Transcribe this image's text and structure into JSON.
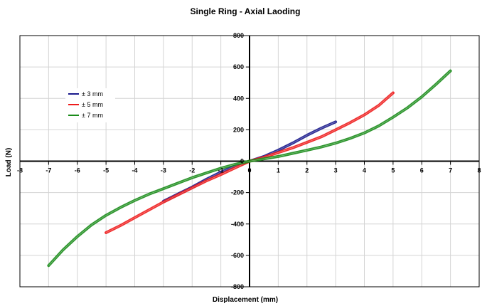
{
  "chart_data": {
    "type": "line",
    "title": "Single Ring - Axial Laoding",
    "xlabel": "Displacement (mm)",
    "ylabel": "Load (N)",
    "xlim": [
      -8,
      8
    ],
    "ylim": [
      -800,
      800
    ],
    "x_ticks": [
      -8,
      -7,
      -6,
      -5,
      -4,
      -3,
      -2,
      -1,
      0,
      1,
      2,
      3,
      4,
      5,
      6,
      7,
      8
    ],
    "y_ticks": [
      -800,
      -600,
      -400,
      -200,
      0,
      200,
      400,
      600,
      800
    ],
    "x_tick_labels": [
      "-8",
      "-7",
      "-6",
      "-5",
      "-4",
      "-3",
      "-2",
      "-1",
      "0",
      "1",
      "2",
      "3",
      "4",
      "5",
      "6",
      "7",
      "8"
    ],
    "y_tick_labels": [
      "-800",
      "-600",
      "-400",
      "-200",
      "0",
      "200",
      "400",
      "600",
      "800"
    ],
    "grid": true,
    "legend_position": "left",
    "series": [
      {
        "name": "± 3 mm",
        "color": "#1a1a8c",
        "x": [
          -3,
          -2.5,
          -2,
          -1.5,
          -1,
          -0.5,
          0,
          0.5,
          1,
          1.5,
          2,
          2.5,
          3
        ],
        "y": [
          -255,
          -210,
          -165,
          -115,
          -70,
          -30,
          0,
          30,
          70,
          115,
          165,
          210,
          250
        ]
      },
      {
        "name": "± 5 mm",
        "color": "#ee1c1c",
        "x": [
          -5,
          -4.5,
          -4,
          -3.5,
          -3,
          -2.5,
          -2,
          -1.5,
          -1,
          -0.5,
          0,
          0.5,
          1,
          1.5,
          2,
          2.5,
          3,
          3.5,
          4,
          4.5,
          5
        ],
        "y": [
          -455,
          -410,
          -360,
          -310,
          -260,
          -215,
          -170,
          -125,
          -85,
          -42,
          0,
          25,
          55,
          85,
          120,
          155,
          200,
          245,
          295,
          355,
          435
        ]
      },
      {
        "name": "± 7 mm",
        "color": "#1a8c1a",
        "x": [
          -7,
          -6.5,
          -6,
          -5.5,
          -5,
          -4.5,
          -4,
          -3.5,
          -3,
          -2.5,
          -2,
          -1.5,
          -1,
          -0.5,
          0,
          0.5,
          1,
          1.5,
          2,
          2.5,
          3,
          3.5,
          4,
          4.5,
          5,
          5.5,
          6,
          6.5,
          7
        ],
        "y": [
          -665,
          -565,
          -480,
          -405,
          -345,
          -295,
          -250,
          -210,
          -175,
          -140,
          -105,
          -75,
          -45,
          -20,
          0,
          15,
          30,
          50,
          70,
          90,
          115,
          145,
          180,
          225,
          280,
          340,
          410,
          490,
          575
        ]
      }
    ]
  }
}
